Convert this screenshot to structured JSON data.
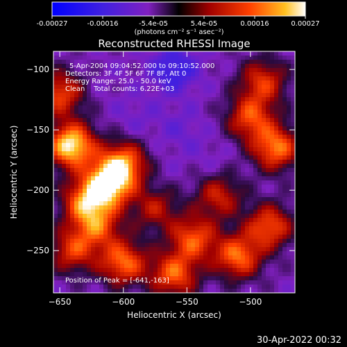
{
  "colorbar": {
    "ticks": [
      "-0.00027",
      "-0.00016",
      "-5.4e-05",
      "5.4e-05",
      "0.00016",
      "0.00027"
    ],
    "unit_label": "(photons cm⁻² s⁻¹ asec⁻²)",
    "colors": [
      "#0000ff",
      "#4020e0",
      "#8020c0",
      "#000000",
      "#a00000",
      "#ff4000",
      "#ffc020",
      "#ffffff"
    ]
  },
  "chart_data": {
    "type": "heatmap",
    "title": "Reconstructed RHESSI Image",
    "xlabel": "Heliocentric X (arcsec)",
    "ylabel": "Heliocentric Y (arcsec)",
    "xlim": [
      -655,
      -465
    ],
    "ylim": [
      -285,
      -85
    ],
    "xticks": [
      -650,
      -600,
      -550,
      -500
    ],
    "xtick_labels": [
      "−650",
      "−600",
      "−550",
      "−500"
    ],
    "yticks": [
      -100,
      -150,
      -200,
      -250
    ],
    "ytick_labels": [
      "−100",
      "−150",
      "−200",
      "−250"
    ],
    "value_range": [
      -0.00027,
      0.00027
    ],
    "annotations": [
      "5-Apr-2004 09:04:52.000 to 09:10:52.000",
      "Detectors: 3F 4F 5F 6F 7F 8F, Att 0",
      "Energy Range: 25.0 - 50.0 keV",
      "Clean    Total counts: 6.22E+03"
    ],
    "peak_label": "Position of Peak = [-641,-163]",
    "peak": [
      -641,
      -163
    ],
    "hotspots": [
      {
        "x": -641,
        "y": -163,
        "v": 0.00027
      },
      {
        "x": -612,
        "y": -195,
        "v": 0.00025
      },
      {
        "x": -600,
        "y": -178,
        "v": 0.00018
      },
      {
        "x": -630,
        "y": -210,
        "v": 0.00016
      },
      {
        "x": -600,
        "y": -260,
        "v": 0.00017
      },
      {
        "x": -560,
        "y": -270,
        "v": 0.00016
      },
      {
        "x": -545,
        "y": -240,
        "v": 0.00015
      },
      {
        "x": -510,
        "y": -255,
        "v": 0.00017
      },
      {
        "x": -485,
        "y": -230,
        "v": 0.00015
      },
      {
        "x": -480,
        "y": -165,
        "v": 0.00018
      },
      {
        "x": -500,
        "y": -140,
        "v": 0.00014
      },
      {
        "x": -490,
        "y": -110,
        "v": 0.00012
      },
      {
        "x": -650,
        "y": -120,
        "v": 0.00014
      },
      {
        "x": -620,
        "y": -230,
        "v": 0.00012
      },
      {
        "x": -575,
        "y": -215,
        "v": 8e-05
      },
      {
        "x": -525,
        "y": -205,
        "v": 0.0001
      },
      {
        "x": -640,
        "y": -250,
        "v": 0.00012
      }
    ],
    "coldspots": [
      {
        "x": -560,
        "y": -100,
        "v": -0.00018
      },
      {
        "x": -555,
        "y": -150,
        "v": -0.0001
      },
      {
        "x": -590,
        "y": -140,
        "v": -9e-05
      },
      {
        "x": -530,
        "y": -175,
        "v": -8e-05
      },
      {
        "x": -570,
        "y": -190,
        "v": -7e-05
      },
      {
        "x": -610,
        "y": -110,
        "v": -7e-05
      }
    ]
  },
  "timestamp": "30-Apr-2022 00:32"
}
